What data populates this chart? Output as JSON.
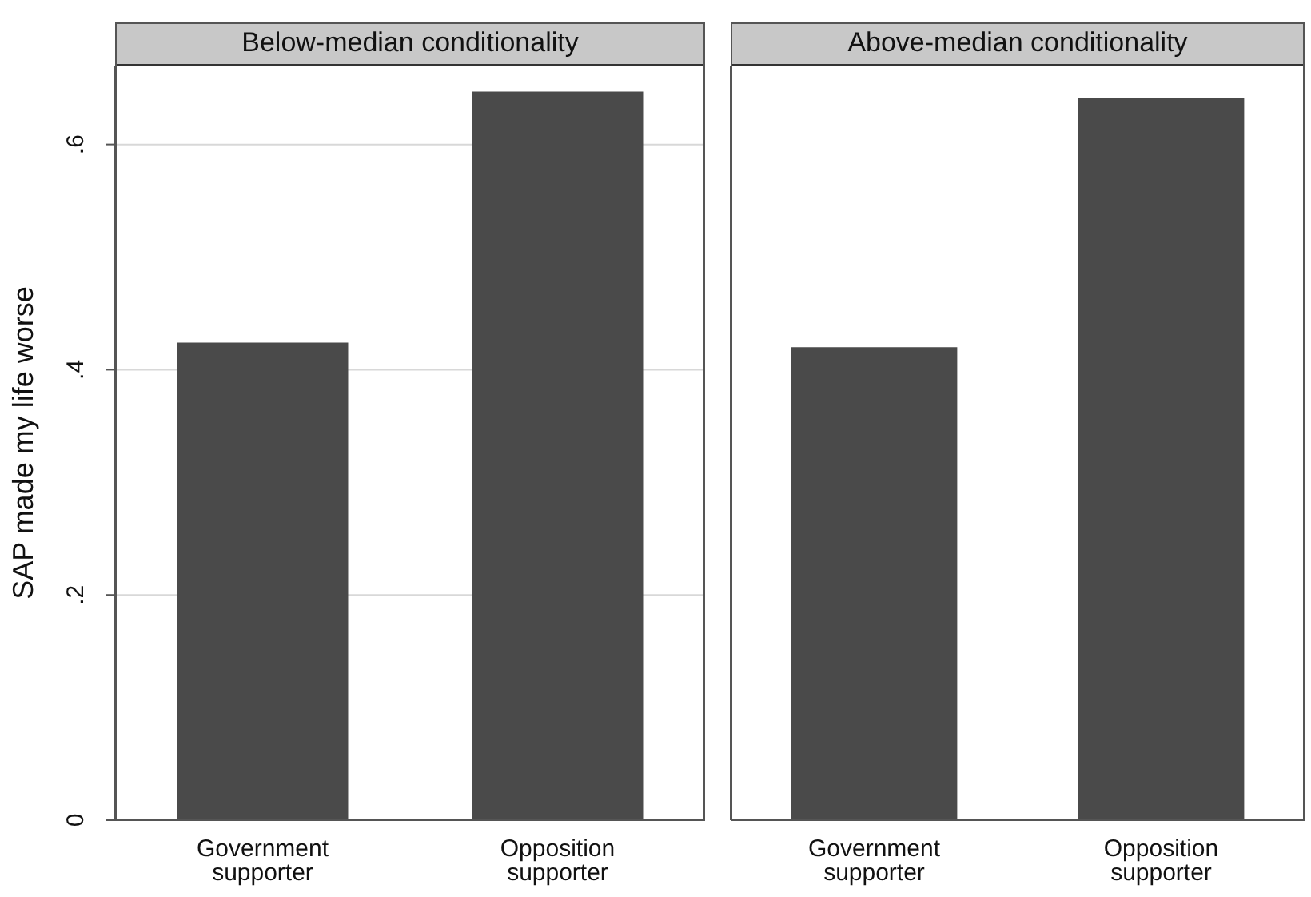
{
  "chart_data": [
    {
      "type": "bar",
      "title": "Below-median conditionality",
      "ylabel": "SAP made my life worse",
      "categories": [
        "Government supporter",
        "Opposition supporter"
      ],
      "values": [
        0.424,
        0.647
      ],
      "color": "#4a4a4a",
      "ylim": [
        0,
        0.67
      ],
      "yticks": [
        0,
        {
          "value": 0.2,
          "label": ".2"
        },
        {
          "value": 0.4,
          "label": ".4"
        },
        {
          "value": 0.6,
          "label": ".6"
        }
      ],
      "grid": "y"
    },
    {
      "type": "bar",
      "title": "Above-median conditionality",
      "categories": [
        "Government supporter",
        "Opposition supporter"
      ],
      "values": [
        0.42,
        0.641
      ],
      "color": "#4a4a4a",
      "ylim": [
        0,
        0.67
      ],
      "yticks": [
        {
          "value": 0,
          "label": null
        },
        {
          "value": 0.2,
          "label": null
        },
        {
          "value": 0.4,
          "label": null
        },
        {
          "value": 0.6,
          "label": null
        }
      ],
      "grid": "y",
      "tick_labels": "x"
    }
  ]
}
